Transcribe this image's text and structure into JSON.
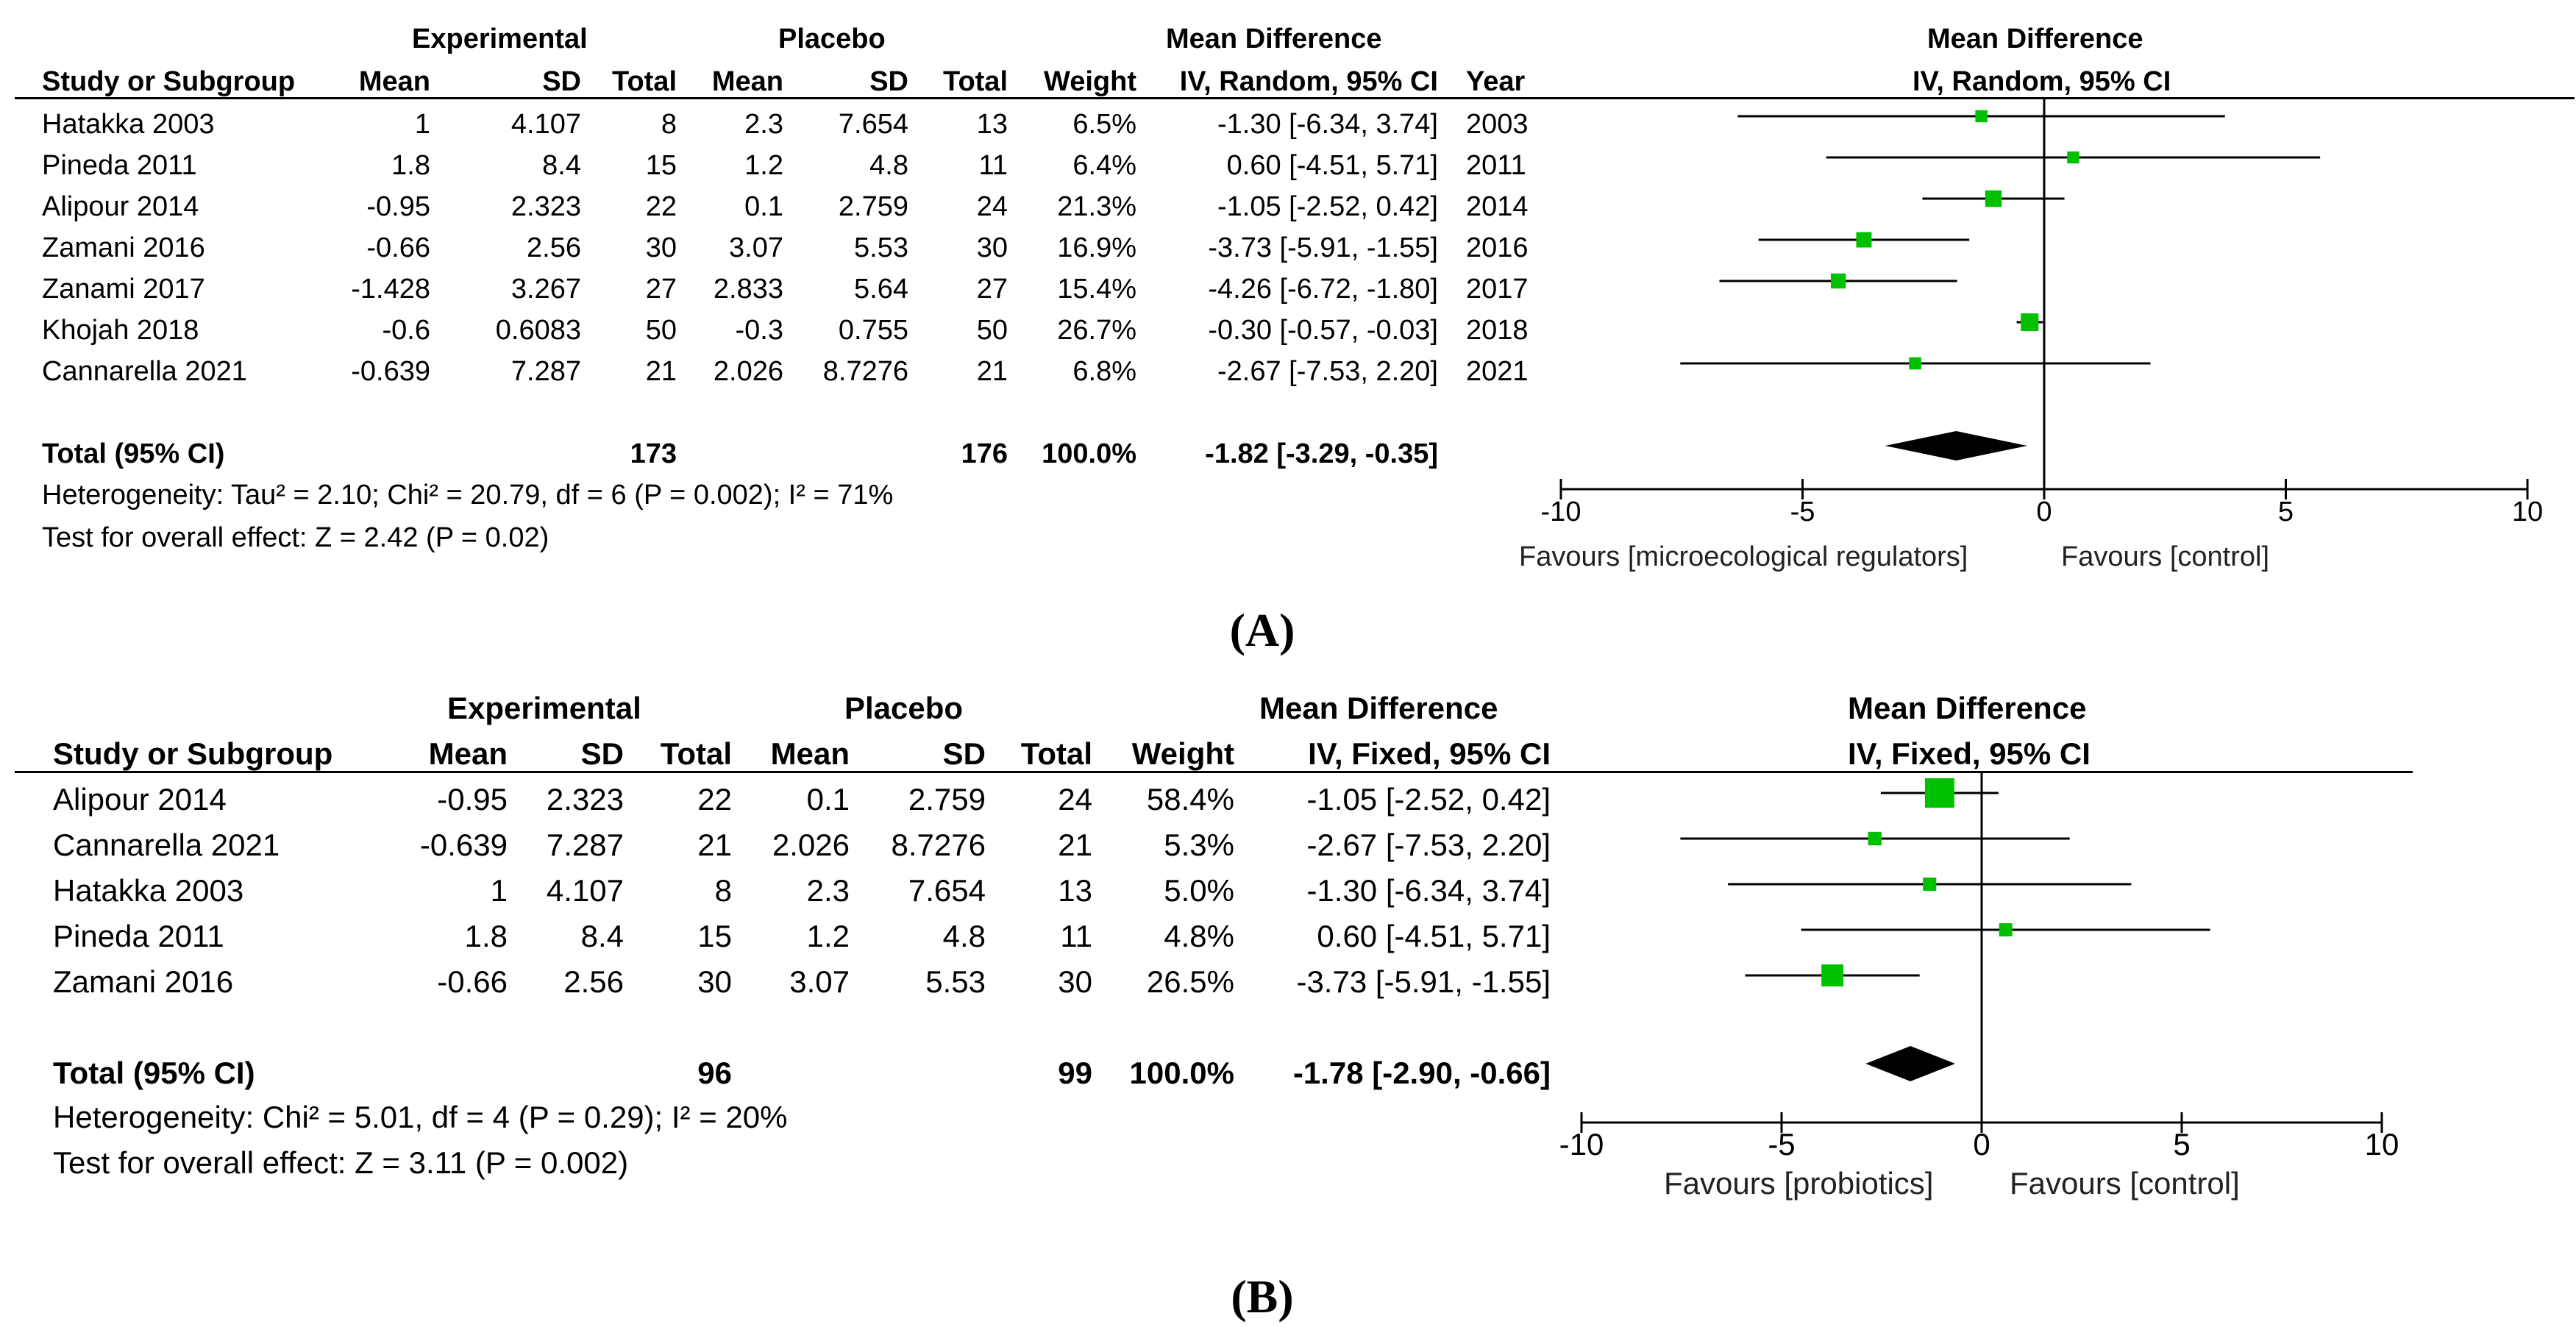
{
  "panels": [
    {
      "label": "(A)",
      "group_headers": {
        "experimental": "Experimental",
        "placebo": "Placebo",
        "mean_difference": "Mean Difference",
        "plot_title": "Mean Difference"
      },
      "columns": {
        "study": "Study or Subgroup",
        "exp_mean": "Mean",
        "exp_sd": "SD",
        "exp_total": "Total",
        "pla_mean": "Mean",
        "pla_sd": "SD",
        "pla_total": "Total",
        "weight": "Weight",
        "md": "IV, Random, 95% CI",
        "year": "Year",
        "plot_method": "IV, Random, 95% CI"
      },
      "studies": [
        {
          "name": "Hatakka 2003",
          "exp_mean": "1",
          "exp_sd": "4.107",
          "exp_total": "8",
          "pla_mean": "2.3",
          "pla_sd": "7.654",
          "pla_total": "13",
          "weight": "6.5%",
          "ci_text": "-1.30 [-6.34, 3.74]",
          "year": "2003"
        },
        {
          "name": "Pineda 2011",
          "exp_mean": "1.8",
          "exp_sd": "8.4",
          "exp_total": "15",
          "pla_mean": "1.2",
          "pla_sd": "4.8",
          "pla_total": "11",
          "weight": "6.4%",
          "ci_text": "0.60 [-4.51, 5.71]",
          "year": "2011"
        },
        {
          "name": "Alipour 2014",
          "exp_mean": "-0.95",
          "exp_sd": "2.323",
          "exp_total": "22",
          "pla_mean": "0.1",
          "pla_sd": "2.759",
          "pla_total": "24",
          "weight": "21.3%",
          "ci_text": "-1.05 [-2.52, 0.42]",
          "year": "2014"
        },
        {
          "name": "Zamani 2016",
          "exp_mean": "-0.66",
          "exp_sd": "2.56",
          "exp_total": "30",
          "pla_mean": "3.07",
          "pla_sd": "5.53",
          "pla_total": "30",
          "weight": "16.9%",
          "ci_text": "-3.73 [-5.91, -1.55]",
          "year": "2016"
        },
        {
          "name": "Zanami 2017",
          "exp_mean": "-1.428",
          "exp_sd": "3.267",
          "exp_total": "27",
          "pla_mean": "2.833",
          "pla_sd": "5.64",
          "pla_total": "27",
          "weight": "15.4%",
          "ci_text": "-4.26 [-6.72, -1.80]",
          "year": "2017"
        },
        {
          "name": "Khojah 2018",
          "exp_mean": "-0.6",
          "exp_sd": "0.6083",
          "exp_total": "50",
          "pla_mean": "-0.3",
          "pla_sd": "0.755",
          "pla_total": "50",
          "weight": "26.7%",
          "ci_text": "-0.30 [-0.57, -0.03]",
          "year": "2018"
        },
        {
          "name": "Cannarella 2021",
          "exp_mean": "-0.639",
          "exp_sd": "7.287",
          "exp_total": "21",
          "pla_mean": "2.026",
          "pla_sd": "8.7276",
          "pla_total": "21",
          "weight": "6.8%",
          "ci_text": "-2.67 [-7.53, 2.20]",
          "year": "2021"
        }
      ],
      "total": {
        "label": "Total (95% CI)",
        "exp_total": "173",
        "pla_total": "176",
        "weight": "100.0%",
        "ci_text": "-1.82 [-3.29, -0.35]"
      },
      "heterogeneity": "Heterogeneity: Tau² = 2.10; Chi² = 20.79, df = 6 (P = 0.002); I² = 71%",
      "overall_effect": "Test for overall effect: Z = 2.42 (P = 0.02)",
      "favours_left": "Favours [microecological regulators]",
      "favours_right": "Favours [control]"
    },
    {
      "label": "(B)",
      "group_headers": {
        "experimental": "Experimental",
        "placebo": "Placebo",
        "mean_difference": "Mean Difference",
        "plot_title": "Mean Difference"
      },
      "columns": {
        "study": "Study or Subgroup",
        "exp_mean": "Mean",
        "exp_sd": "SD",
        "exp_total": "Total",
        "pla_mean": "Mean",
        "pla_sd": "SD",
        "pla_total": "Total",
        "weight": "Weight",
        "md": "IV, Fixed, 95% CI",
        "plot_method": "IV, Fixed, 95% CI"
      },
      "studies": [
        {
          "name": "Alipour 2014",
          "exp_mean": "-0.95",
          "exp_sd": "2.323",
          "exp_total": "22",
          "pla_mean": "0.1",
          "pla_sd": "2.759",
          "pla_total": "24",
          "weight": "58.4%",
          "ci_text": "-1.05 [-2.52, 0.42]"
        },
        {
          "name": "Cannarella 2021",
          "exp_mean": "-0.639",
          "exp_sd": "7.287",
          "exp_total": "21",
          "pla_mean": "2.026",
          "pla_sd": "8.7276",
          "pla_total": "21",
          "weight": "5.3%",
          "ci_text": "-2.67 [-7.53, 2.20]"
        },
        {
          "name": "Hatakka 2003",
          "exp_mean": "1",
          "exp_sd": "4.107",
          "exp_total": "8",
          "pla_mean": "2.3",
          "pla_sd": "7.654",
          "pla_total": "13",
          "weight": "5.0%",
          "ci_text": "-1.30 [-6.34, 3.74]"
        },
        {
          "name": "Pineda 2011",
          "exp_mean": "1.8",
          "exp_sd": "8.4",
          "exp_total": "15",
          "pla_mean": "1.2",
          "pla_sd": "4.8",
          "pla_total": "11",
          "weight": "4.8%",
          "ci_text": "0.60 [-4.51, 5.71]"
        },
        {
          "name": "Zamani 2016",
          "exp_mean": "-0.66",
          "exp_sd": "2.56",
          "exp_total": "30",
          "pla_mean": "3.07",
          "pla_sd": "5.53",
          "pla_total": "30",
          "weight": "26.5%",
          "ci_text": "-3.73 [-5.91, -1.55]"
        }
      ],
      "total": {
        "label": "Total (95% CI)",
        "exp_total": "96",
        "pla_total": "99",
        "weight": "100.0%",
        "ci_text": "-1.78 [-2.90, -0.66]"
      },
      "heterogeneity": "Heterogeneity: Chi² = 5.01, df = 4 (P = 0.29); I² = 20%",
      "overall_effect": "Test for overall effect: Z = 3.11 (P = 0.002)",
      "favours_left": "Favours [probiotics]",
      "favours_right": "Favours [control]"
    }
  ],
  "chart_data": [
    {
      "type": "forest",
      "panel": "A",
      "model": "IV, Random, 95% CI",
      "xlim": [
        -10,
        10
      ],
      "xticks": [
        -10,
        -5,
        0,
        5,
        10
      ],
      "tick_labels": [
        "-10",
        "-5",
        "0",
        "5",
        "10"
      ],
      "studies": [
        {
          "name": "Hatakka 2003",
          "md": -1.3,
          "lo": -6.34,
          "hi": 3.74,
          "weight": 6.5
        },
        {
          "name": "Pineda 2011",
          "md": 0.6,
          "lo": -4.51,
          "hi": 5.71,
          "weight": 6.4
        },
        {
          "name": "Alipour 2014",
          "md": -1.05,
          "lo": -2.52,
          "hi": 0.42,
          "weight": 21.3
        },
        {
          "name": "Zamani 2016",
          "md": -3.73,
          "lo": -5.91,
          "hi": -1.55,
          "weight": 16.9
        },
        {
          "name": "Zanami 2017",
          "md": -4.26,
          "lo": -6.72,
          "hi": -1.8,
          "weight": 15.4
        },
        {
          "name": "Khojah 2018",
          "md": -0.3,
          "lo": -0.57,
          "hi": -0.03,
          "weight": 26.7
        },
        {
          "name": "Cannarella 2021",
          "md": -2.67,
          "lo": -7.53,
          "hi": 2.2,
          "weight": 6.8
        }
      ],
      "pooled": {
        "md": -1.82,
        "lo": -3.29,
        "hi": -0.35
      },
      "marker_color": "#00c000"
    },
    {
      "type": "forest",
      "panel": "B",
      "model": "IV, Fixed, 95% CI",
      "xlim": [
        -10,
        10
      ],
      "xticks": [
        -10,
        -5,
        0,
        5,
        10
      ],
      "tick_labels": [
        "-10",
        "-5",
        "0",
        "5",
        "10"
      ],
      "studies": [
        {
          "name": "Alipour 2014",
          "md": -1.05,
          "lo": -2.52,
          "hi": 0.42,
          "weight": 58.4
        },
        {
          "name": "Cannarella 2021",
          "md": -2.67,
          "lo": -7.53,
          "hi": 2.2,
          "weight": 5.3
        },
        {
          "name": "Hatakka 2003",
          "md": -1.3,
          "lo": -6.34,
          "hi": 3.74,
          "weight": 5.0
        },
        {
          "name": "Pineda 2011",
          "md": 0.6,
          "lo": -4.51,
          "hi": 5.71,
          "weight": 4.8
        },
        {
          "name": "Zamani 2016",
          "md": -3.73,
          "lo": -5.91,
          "hi": -1.55,
          "weight": 26.5
        }
      ],
      "pooled": {
        "md": -1.78,
        "lo": -2.9,
        "hi": -0.66
      },
      "marker_color": "#00c000"
    }
  ]
}
